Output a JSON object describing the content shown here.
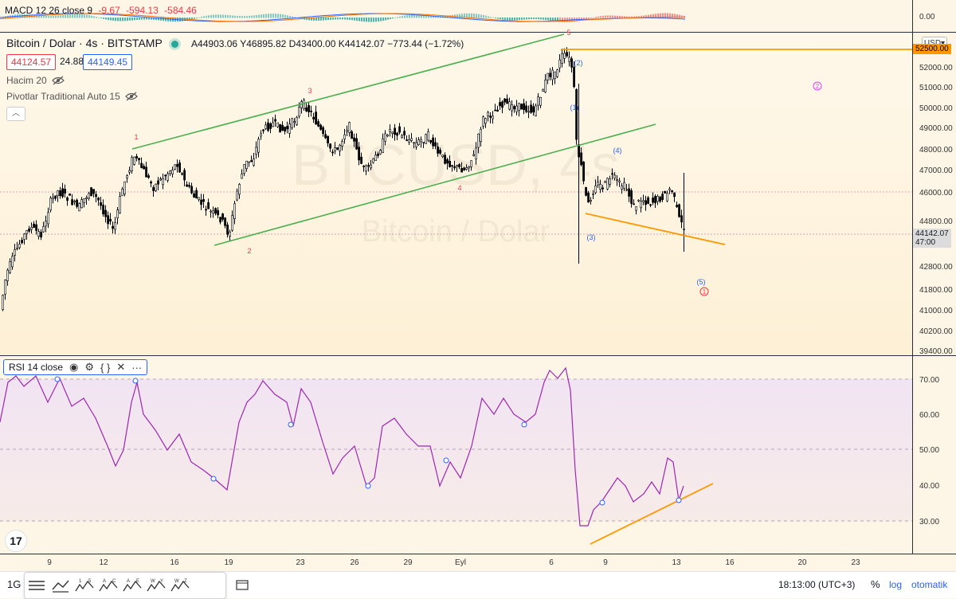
{
  "macd": {
    "name": "MACD 12 26 close 9",
    "v1": "-9.67",
    "v2": "-594.13",
    "v3": "-584.46",
    "axis_label": "0.00"
  },
  "main": {
    "symbol": "Bitcoin / Dolar · 4s · BITSTAMP",
    "ohlc": {
      "o_label": "A",
      "o": "44903.06",
      "h_label": "Y",
      "h": "46895.82",
      "l_label": "D",
      "l": "43400.00",
      "c_label": "K",
      "c": "44142.07",
      "change": "−773.44 (−1.72%)"
    },
    "bid": "44124.57",
    "spread": "24.88",
    "ask": "44149.45",
    "indicators": [
      {
        "label": "Hacim 20"
      },
      {
        "label": "Pivotlar Traditional Auto 15"
      }
    ],
    "watermark_line1": "BTCUSD, 4s",
    "watermark_line2": "Bitcoin / Dolar",
    "currency_button": "USD",
    "current_price_label": "44142.07",
    "current_price_countdown": "47:00",
    "orange_level_label": "52500.00",
    "price_axis": [
      "52000.00",
      "51000.00",
      "50000.00",
      "49000.00",
      "48000.00",
      "47000.00",
      "46000.00",
      "44800.00",
      "42800.00",
      "41800.00",
      "41000.00",
      "40200.00",
      "39400.00"
    ],
    "wave_labels": {
      "w1": "1",
      "w2": "2",
      "w3": "3",
      "w4": "4",
      "w5": "5",
      "sub2": "(2)",
      "sub1": "(1)",
      "sub4": "(4)",
      "sub3": "(3)",
      "sub5": "(5)",
      "circ2": "2",
      "circ1": "1"
    },
    "colors": {
      "up": "#ffffff",
      "down": "#000000",
      "channel": "#4caf50",
      "orange": "#ff9800",
      "wave_red": "#f23645",
      "wave_blue": "#2962ff",
      "circle_pink": "#e040fb",
      "circle_red": "#f23645",
      "rsi_line": "#9c27b0"
    }
  },
  "rsi": {
    "name": "RSI 14 close",
    "axis": [
      "70.00",
      "60.00",
      "50.00",
      "40.00",
      "30.00"
    ]
  },
  "time_axis": [
    "9",
    "12",
    "16",
    "19",
    "23",
    "26",
    "29",
    "Eyl",
    "6",
    "9",
    "13",
    "16",
    "20",
    "23"
  ],
  "bottombar": {
    "timeframe": "1G",
    "tool_icons": [
      "cursor-lines-icon",
      "trend-lines-icon",
      "elliott-impulse-icon",
      "elliott-correction-icon",
      "elliott-triangle-icon",
      "elliott-double-combo-icon",
      "elliott-triple-combo-icon"
    ],
    "tool_icon_labels": [
      [
        "1",
        "5"
      ],
      [
        "A",
        "C"
      ],
      [
        "A",
        "E"
      ],
      [
        "W",
        "Y"
      ],
      [
        "W",
        "Z"
      ]
    ],
    "time": "18:13:00 (UTC+3)",
    "percent": "%",
    "log": "log",
    "auto": "otomatik"
  }
}
